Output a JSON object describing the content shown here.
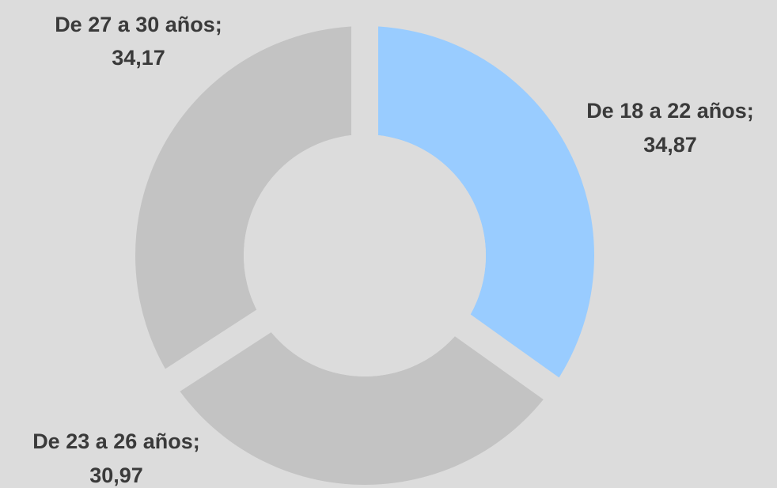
{
  "chart_data": {
    "type": "donut",
    "categories": [
      "De 18 a 22 años;",
      "De 23 a 26 años;",
      "De 27 a 30 años;"
    ],
    "values": [
      34.87,
      30.97,
      34.17
    ],
    "value_labels": [
      "34,87",
      "30,97",
      "34,17"
    ],
    "colors": [
      "#99ccff",
      "#c3c3c3",
      "#c3c3c3"
    ]
  }
}
